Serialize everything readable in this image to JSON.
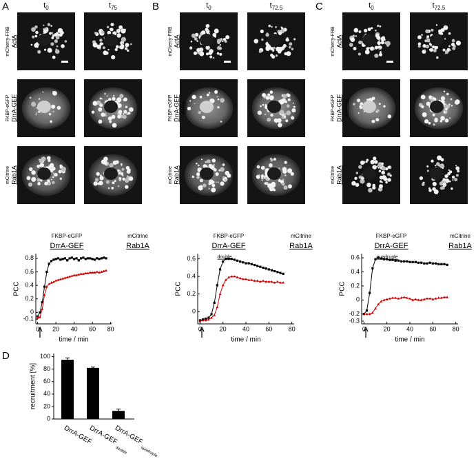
{
  "figure": {
    "panel_labels": [
      "A",
      "B",
      "C",
      "D"
    ],
    "image_panels": [
      {
        "time_labels": [
          {
            "base": "t",
            "sub": "0"
          },
          {
            "base": "t",
            "sub": "75"
          }
        ],
        "rows": [
          {
            "tag": "mCherry-FRB",
            "name": "ActA"
          },
          {
            "tag": "FKBP-eGFP",
            "name": "DrrA-GEF"
          },
          {
            "tag": "mCitrine",
            "name": "Rab1A"
          }
        ]
      },
      {
        "time_labels": [
          {
            "base": "t",
            "sub": "0"
          },
          {
            "base": "t",
            "sub": "72.5"
          }
        ],
        "rows": [
          {
            "tag": "mCherry-FRB",
            "name": "ActA"
          },
          {
            "tag": "FKBP-eGFP",
            "name": "DrrA-GEF",
            "subscript": "double"
          },
          {
            "tag": "mCitrine",
            "name": "Rab1A"
          }
        ]
      },
      {
        "time_labels": [
          {
            "base": "t",
            "sub": "0"
          },
          {
            "base": "t",
            "sub": "72.5"
          }
        ],
        "rows": [
          {
            "tag": "mCherry-FRB",
            "name": "ActA"
          },
          {
            "tag": "FKBP-eGFP",
            "name": "DrrA-GEF",
            "subscript": "quadruple"
          },
          {
            "tag": "mCitrine",
            "name": "Rab1A"
          }
        ]
      }
    ]
  },
  "chart_data": [
    {
      "type": "line",
      "xlabel": "time / min",
      "ylabel": "PCC",
      "x": [
        0,
        2.5,
        5,
        7.5,
        10,
        12.5,
        15,
        17.5,
        20,
        22.5,
        25,
        27.5,
        30,
        32.5,
        35,
        37.5,
        40,
        42.5,
        45,
        47.5,
        50,
        52.5,
        55,
        57.5,
        60,
        62.5,
        65,
        67.5,
        70,
        72.5,
        75
      ],
      "series": [
        {
          "tag": "FKBP-eGFP",
          "name": "DrrA-GEF",
          "color": "#000000",
          "marker": "square",
          "values": [
            -0.06,
            0.0,
            0.15,
            0.38,
            0.6,
            0.72,
            0.76,
            0.78,
            0.79,
            0.8,
            0.78,
            0.79,
            0.8,
            0.77,
            0.8,
            0.81,
            0.79,
            0.8,
            0.77,
            0.8,
            0.81,
            0.79,
            0.8,
            0.8,
            0.79,
            0.78,
            0.8,
            0.79,
            0.8,
            0.81,
            0.8
          ]
        },
        {
          "tag": "mCitrine",
          "name": "Rab1A",
          "color": "#cc0000",
          "marker": "triangle",
          "values": [
            -0.08,
            -0.07,
            0.05,
            0.26,
            0.38,
            0.42,
            0.44,
            0.45,
            0.47,
            0.48,
            0.49,
            0.5,
            0.51,
            0.52,
            0.53,
            0.54,
            0.55,
            0.55,
            0.56,
            0.57,
            0.57,
            0.58,
            0.58,
            0.59,
            0.59,
            0.59,
            0.6,
            0.59,
            0.6,
            0.61,
            0.62
          ]
        }
      ],
      "xlim": [
        -2,
        81
      ],
      "ylim": [
        -0.17,
        0.87
      ],
      "xticks": [
        0,
        20,
        40,
        60,
        80
      ],
      "yticks": [
        -0.1,
        0,
        0.2,
        0.4,
        0.6,
        0.8
      ]
    },
    {
      "type": "line",
      "xlabel": "time / min",
      "ylabel": "PCC",
      "x": [
        0,
        2.5,
        5,
        7.5,
        10,
        12.5,
        15,
        17.5,
        20,
        22.5,
        25,
        27.5,
        30,
        32.5,
        35,
        37.5,
        40,
        42.5,
        45,
        47.5,
        50,
        52.5,
        55,
        57.5,
        60,
        62.5,
        65,
        67.5,
        70,
        72.5
      ],
      "series": [
        {
          "tag": "FKBP-eGFP",
          "name": "DrrA-GEF",
          "subscript": "double",
          "color": "#000000",
          "marker": "square",
          "values": [
            -0.1,
            -0.09,
            -0.08,
            -0.07,
            -0.03,
            0.1,
            0.3,
            0.48,
            0.57,
            0.6,
            0.6,
            0.6,
            0.59,
            0.58,
            0.57,
            0.56,
            0.55,
            0.55,
            0.54,
            0.53,
            0.52,
            0.51,
            0.5,
            0.49,
            0.48,
            0.47,
            0.46,
            0.45,
            0.44,
            0.43
          ]
        },
        {
          "tag": "mCitrine",
          "name": "Rab1A",
          "color": "#cc0000",
          "marker": "triangle",
          "values": [
            -0.11,
            -0.1,
            -0.1,
            -0.09,
            -0.07,
            -0.04,
            0.05,
            0.2,
            0.3,
            0.36,
            0.39,
            0.4,
            0.4,
            0.39,
            0.38,
            0.37,
            0.37,
            0.36,
            0.36,
            0.35,
            0.35,
            0.34,
            0.35,
            0.34,
            0.34,
            0.34,
            0.33,
            0.34,
            0.33,
            0.33
          ]
        }
      ],
      "xlim": [
        -2,
        82
      ],
      "ylim": [
        -0.14,
        0.66
      ],
      "xticks": [
        0,
        20,
        40,
        60,
        80
      ],
      "yticks": [
        0,
        0.2,
        0.4,
        0.6
      ]
    },
    {
      "type": "line",
      "xlabel": "time / min",
      "ylabel": "PCC",
      "x": [
        0,
        2.5,
        5,
        7.5,
        10,
        12.5,
        15,
        17.5,
        20,
        22.5,
        25,
        27.5,
        30,
        32.5,
        35,
        37.5,
        40,
        42.5,
        45,
        47.5,
        50,
        52.5,
        55,
        57.5,
        60,
        62.5,
        65,
        67.5,
        70,
        72.5
      ],
      "series": [
        {
          "tag": "FKBP-eGFP",
          "name": "DrrA-GEF",
          "subscript": "quadruple",
          "color": "#000000",
          "marker": "square",
          "values": [
            -0.2,
            -0.15,
            0.1,
            0.45,
            0.58,
            0.6,
            0.59,
            0.58,
            0.58,
            0.57,
            0.57,
            0.56,
            0.56,
            0.55,
            0.55,
            0.55,
            0.54,
            0.54,
            0.54,
            0.53,
            0.53,
            0.52,
            0.52,
            0.53,
            0.52,
            0.52,
            0.51,
            0.51,
            0.51,
            0.5
          ]
        },
        {
          "tag": "mCitrine",
          "name": "Rab1A",
          "color": "#cc0000",
          "marker": "triangle",
          "values": [
            -0.2,
            -0.2,
            -0.2,
            -0.18,
            -0.12,
            -0.06,
            -0.02,
            0.0,
            0.01,
            0.02,
            0.03,
            0.03,
            0.02,
            0.03,
            0.04,
            0.03,
            0.02,
            0.0,
            0.01,
            0.0,
            0.0,
            0.01,
            0.02,
            0.02,
            0.01,
            0.02,
            0.03,
            0.03,
            0.04,
            0.04
          ]
        }
      ],
      "xlim": [
        -2,
        82
      ],
      "ylim": [
        -0.34,
        0.66
      ],
      "xticks": [
        0,
        20,
        40,
        60,
        80
      ],
      "yticks": [
        -0.3,
        -0.2,
        0,
        0.2,
        0.4,
        0.6
      ]
    },
    {
      "type": "bar",
      "ylabel": "recruitment [%]",
      "categories": [
        {
          "name": "DrrA-GEF"
        },
        {
          "name": "DrrA-GEF",
          "subscript": "double"
        },
        {
          "name": "DrrA-GEF",
          "subscript": "quadruple"
        }
      ],
      "values": [
        95,
        82,
        13
      ],
      "errors": [
        3,
        1.5,
        3
      ],
      "color": "#000000",
      "ylim": [
        0,
        105
      ],
      "yticks": [
        0,
        20,
        40,
        60,
        80,
        100
      ]
    }
  ]
}
